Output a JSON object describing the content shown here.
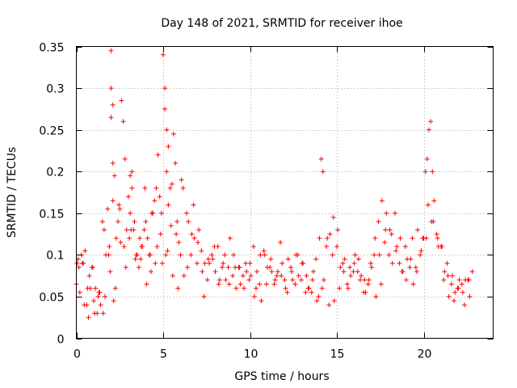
{
  "chart_data": {
    "type": "scatter",
    "title": "Day 148 of 2021, SRMTID for receiver ihoe",
    "xlabel": "GPS time / hours",
    "ylabel": "SRMTID / TECUs",
    "xlim": [
      0,
      24
    ],
    "ylim": [
      0,
      0.35
    ],
    "xticks": [
      0,
      5,
      10,
      15,
      20
    ],
    "xtick_labels": [
      "0",
      "5",
      "10",
      "15",
      "20"
    ],
    "yticks": [
      0,
      0.05,
      0.1,
      0.15,
      0.2,
      0.25,
      0.3,
      0.35
    ],
    "ytick_labels": [
      "0",
      "0.05",
      "0.1",
      "0.15",
      "0.2",
      "0.25",
      "0.3",
      "0.35"
    ],
    "grid": true,
    "marker": "+",
    "color": "#ff0000",
    "series": [
      {
        "name": "SRMTID",
        "x": [
          0.0,
          0.1,
          0.2,
          0.3,
          0.4,
          0.5,
          0.6,
          0.7,
          0.8,
          0.9,
          1.0,
          1.1,
          1.2,
          1.3,
          1.4,
          1.5,
          1.6,
          1.7,
          1.8,
          1.9,
          2.0,
          2.0,
          2.0,
          2.1,
          2.1,
          2.1,
          2.2,
          2.3,
          2.4,
          2.5,
          2.6,
          2.7,
          2.8,
          2.9,
          3.0,
          3.1,
          3.1,
          3.2,
          3.2,
          3.3,
          3.4,
          3.5,
          3.6,
          3.7,
          3.8,
          3.9,
          4.0,
          4.1,
          4.2,
          4.3,
          4.4,
          4.5,
          4.6,
          4.7,
          4.8,
          4.9,
          5.0,
          5.1,
          5.1,
          5.2,
          5.2,
          5.3,
          5.3,
          5.4,
          5.5,
          5.6,
          5.7,
          5.8,
          5.9,
          6.0,
          6.2,
          6.4,
          6.6,
          6.8,
          7.0,
          7.2,
          7.4,
          7.6,
          7.8,
          8.0,
          8.2,
          8.4,
          8.6,
          8.8,
          9.0,
          9.2,
          9.4,
          9.6,
          9.8,
          10.0,
          10.2,
          10.4,
          10.6,
          10.8,
          11.0,
          11.2,
          11.4,
          11.6,
          11.8,
          12.0,
          12.2,
          12.4,
          12.6,
          12.8,
          13.0,
          13.2,
          13.4,
          13.6,
          13.8,
          14.0,
          14.1,
          14.2,
          14.4,
          14.6,
          14.8,
          15.0,
          15.2,
          15.4,
          15.6,
          15.8,
          16.0,
          16.2,
          16.4,
          16.6,
          16.8,
          17.0,
          17.2,
          17.4,
          17.6,
          17.8,
          18.0,
          18.2,
          18.4,
          18.6,
          18.8,
          19.0,
          19.2,
          19.4,
          19.6,
          19.8,
          20.0,
          20.1,
          20.2,
          20.3,
          20.4,
          20.5,
          20.6,
          20.8,
          21.0,
          21.2,
          21.4,
          21.6,
          21.8,
          22.0,
          22.2,
          22.4,
          22.6,
          22.8,
          0.05,
          0.35,
          0.65,
          0.95,
          1.25,
          1.55,
          1.85,
          2.15,
          2.45,
          2.75,
          3.05,
          3.35,
          3.65,
          3.95,
          4.25,
          4.55,
          4.85,
          5.15,
          5.45,
          5.75,
          6.05,
          6.35,
          6.65,
          6.95,
          7.25,
          7.55,
          7.85,
          8.15,
          8.45,
          8.75,
          9.05,
          9.35,
          9.65,
          9.95,
          10.25,
          10.55,
          10.85,
          11.15,
          11.45,
          11.75,
          12.05,
          12.35,
          12.65,
          12.95,
          13.25,
          13.55,
          13.85,
          14.15,
          14.45,
          14.75,
          15.05,
          15.35,
          15.65,
          15.95,
          16.25,
          16.55,
          16.85,
          17.15,
          17.45,
          17.75,
          18.05,
          18.35,
          18.65,
          18.95,
          19.25,
          19.55,
          19.85,
          20.15,
          20.45,
          20.75,
          21.05,
          21.35,
          21.65,
          21.95,
          22.25,
          22.55,
          0.15,
          0.45,
          0.75,
          1.05,
          1.35,
          1.65,
          1.95,
          2.25,
          2.55,
          2.85,
          3.15,
          3.45,
          3.75,
          4.05,
          4.35,
          4.65,
          4.95,
          5.25,
          5.55,
          5.85,
          6.15,
          6.45,
          6.75,
          7.05,
          7.35,
          7.65,
          7.95,
          8.25,
          8.55,
          8.85,
          9.15,
          9.45,
          9.75,
          10.05,
          10.35,
          10.65,
          10.95,
          11.25,
          11.55,
          11.85,
          12.15,
          12.45,
          12.75,
          13.05,
          13.35,
          13.65,
          13.95,
          14.25,
          14.55,
          14.85,
          15.15,
          15.45,
          15.75,
          16.05,
          16.35,
          16.65,
          16.95,
          17.25,
          17.55,
          17.85,
          18.15,
          18.45,
          18.75,
          19.05,
          19.35,
          19.65,
          19.95,
          20.25,
          20.55,
          20.85,
          21.15,
          21.45,
          21.75,
          22.05,
          22.35,
          22.65
        ],
        "y": [
          0.065,
          0.095,
          0.055,
          0.1,
          0.09,
          0.105,
          0.04,
          0.025,
          0.06,
          0.085,
          0.045,
          0.06,
          0.03,
          0.055,
          0.04,
          0.14,
          0.13,
          0.1,
          0.155,
          0.11,
          0.345,
          0.3,
          0.265,
          0.28,
          0.21,
          0.165,
          0.195,
          0.12,
          0.14,
          0.155,
          0.285,
          0.26,
          0.215,
          0.13,
          0.17,
          0.195,
          0.15,
          0.2,
          0.18,
          0.13,
          0.095,
          0.1,
          0.085,
          0.095,
          0.11,
          0.13,
          0.14,
          0.12,
          0.1,
          0.08,
          0.15,
          0.165,
          0.18,
          0.22,
          0.17,
          0.15,
          0.34,
          0.3,
          0.275,
          0.25,
          0.2,
          0.23,
          0.16,
          0.18,
          0.185,
          0.245,
          0.21,
          0.14,
          0.115,
          0.1,
          0.075,
          0.085,
          0.1,
          0.12,
          0.115,
          0.105,
          0.09,
          0.095,
          0.1,
          0.08,
          0.065,
          0.085,
          0.07,
          0.065,
          0.075,
          0.06,
          0.085,
          0.075,
          0.08,
          0.09,
          0.11,
          0.08,
          0.1,
          0.105,
          0.085,
          0.095,
          0.065,
          0.08,
          0.075,
          0.07,
          0.095,
          0.08,
          0.065,
          0.075,
          0.09,
          0.055,
          0.06,
          0.07,
          0.095,
          0.12,
          0.215,
          0.2,
          0.11,
          0.125,
          0.145,
          0.11,
          0.085,
          0.08,
          0.065,
          0.075,
          0.09,
          0.08,
          0.075,
          0.07,
          0.065,
          0.085,
          0.12,
          0.14,
          0.165,
          0.13,
          0.1,
          0.09,
          0.105,
          0.09,
          0.08,
          0.07,
          0.085,
          0.065,
          0.08,
          0.1,
          0.12,
          0.2,
          0.215,
          0.25,
          0.26,
          0.2,
          0.165,
          0.12,
          0.11,
          0.08,
          0.075,
          0.065,
          0.055,
          0.06,
          0.065,
          0.07,
          0.07,
          0.08,
          0.09,
          0.09,
          0.06,
          0.085,
          0.05,
          0.03,
          0.1,
          0.045,
          0.16,
          0.11,
          0.12,
          0.14,
          0.12,
          0.18,
          0.1,
          0.09,
          0.125,
          0.1,
          0.135,
          0.125,
          0.19,
          0.15,
          0.125,
          0.09,
          0.08,
          0.07,
          0.095,
          0.11,
          0.09,
          0.085,
          0.1,
          0.085,
          0.06,
          0.07,
          0.05,
          0.065,
          0.1,
          0.085,
          0.07,
          0.115,
          0.06,
          0.085,
          0.1,
          0.07,
          0.075,
          0.055,
          0.045,
          0.06,
          0.12,
          0.1,
          0.13,
          0.09,
          0.06,
          0.08,
          0.095,
          0.055,
          0.07,
          0.1,
          0.1,
          0.115,
          0.13,
          0.15,
          0.12,
          0.11,
          0.095,
          0.085,
          0.105,
          0.12,
          0.14,
          0.125,
          0.11,
          0.09,
          0.075,
          0.06,
          0.055,
          0.07,
          0.085,
          0.04,
          0.075,
          0.03,
          0.055,
          0.05,
          0.08,
          0.06,
          0.115,
          0.085,
          0.13,
          0.1,
          0.11,
          0.065,
          0.15,
          0.11,
          0.09,
          0.105,
          0.075,
          0.06,
          0.18,
          0.14,
          0.16,
          0.13,
          0.05,
          0.09,
          0.11,
          0.07,
          0.1,
          0.12,
          0.085,
          0.065,
          0.09,
          0.075,
          0.06,
          0.045,
          0.065,
          0.08,
          0.075,
          0.09,
          0.055,
          0.07,
          0.1,
          0.09,
          0.06,
          0.08,
          0.05,
          0.07,
          0.04,
          0.045,
          0.06,
          0.095,
          0.085,
          0.1,
          0.07,
          0.055,
          0.09,
          0.05,
          0.065,
          0.15,
          0.125,
          0.11,
          0.08,
          0.095,
          0.12,
          0.13,
          0.12,
          0.16,
          0.14,
          0.11,
          0.07,
          0.05,
          0.045,
          0.07,
          0.04,
          0.05
        ]
      }
    ]
  }
}
